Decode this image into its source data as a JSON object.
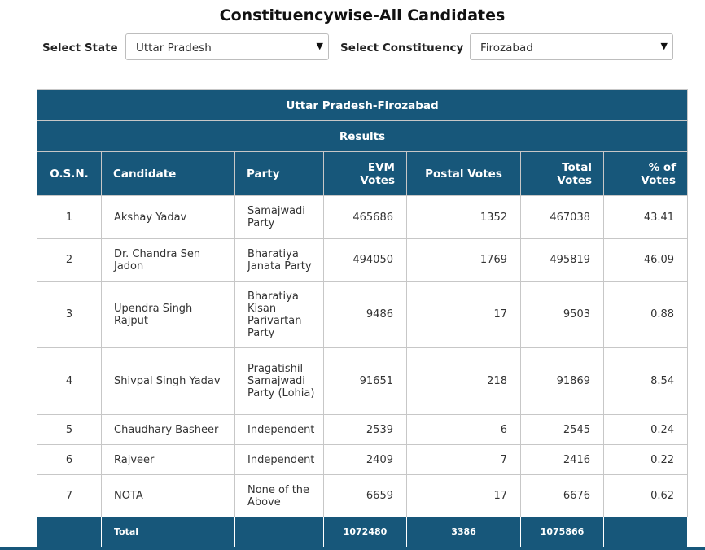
{
  "page_title": "Constituencywise-All Candidates",
  "filters": {
    "state_label": "Select State",
    "state_value": "Uttar Pradesh",
    "constituency_label": "Select Constituency",
    "constituency_value": "Firozabad",
    "dropdown_arrow": "▼"
  },
  "table": {
    "banner": "Uttar Pradesh-Firozabad",
    "section": "Results",
    "columns": [
      "O.S.N.",
      "Candidate",
      "Party",
      "EVM Votes",
      "Postal Votes",
      "Total Votes",
      "% of Votes"
    ],
    "rows": [
      {
        "osn": "1",
        "candidate": "Akshay Yadav",
        "party": "Samajwadi Party",
        "evm": "465686",
        "postal": "1352",
        "total": "467038",
        "pct": "43.41"
      },
      {
        "osn": "2",
        "candidate": "Dr. Chandra Sen Jadon",
        "party": "Bharatiya Janata Party",
        "evm": "494050",
        "postal": "1769",
        "total": "495819",
        "pct": "46.09"
      },
      {
        "osn": "3",
        "candidate": "Upendra Singh Rajput",
        "party": "Bharatiya Kisan Parivartan Party",
        "evm": "9486",
        "postal": "17",
        "total": "9503",
        "pct": "0.88"
      },
      {
        "osn": "4",
        "candidate": "Shivpal Singh Yadav",
        "party": "Pragatishil Samajwadi Party (Lohia)",
        "evm": "91651",
        "postal": "218",
        "total": "91869",
        "pct": "8.54"
      },
      {
        "osn": "5",
        "candidate": "Chaudhary Basheer",
        "party": "Independent",
        "evm": "2539",
        "postal": "6",
        "total": "2545",
        "pct": "0.24"
      },
      {
        "osn": "6",
        "candidate": "Rajveer",
        "party": "Independent",
        "evm": "2409",
        "postal": "7",
        "total": "2416",
        "pct": "0.22"
      },
      {
        "osn": "7",
        "candidate": "NOTA",
        "party": "None of the Above",
        "evm": "6659",
        "postal": "17",
        "total": "6676",
        "pct": "0.62"
      }
    ],
    "total": {
      "label": "Total",
      "evm": "1072480",
      "postal": "3386",
      "total": "1075866"
    }
  }
}
